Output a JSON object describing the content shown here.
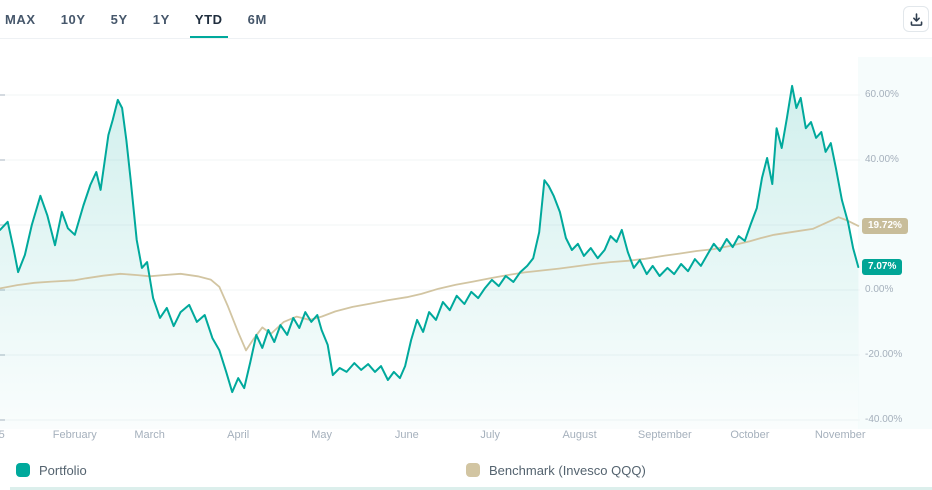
{
  "toolbar": {
    "tabs": [
      {
        "label": "MAX",
        "active": false
      },
      {
        "label": "10Y",
        "active": false
      },
      {
        "label": "5Y",
        "active": false
      },
      {
        "label": "1Y",
        "active": false
      },
      {
        "label": "YTD",
        "active": true
      },
      {
        "label": "6M",
        "active": false
      }
    ],
    "download_icon": "download-icon"
  },
  "colors": {
    "accent": "#00a99c",
    "benchmark": "#d2c5a2",
    "axis_text": "#a5b0bc",
    "active_tab_underline": "#00a99c"
  },
  "chart_data": {
    "type": "line",
    "subtype": "area",
    "title": "",
    "unit": "percent",
    "selected_range": "YTD",
    "ylim": [
      -45,
      68
    ],
    "grid": true,
    "legend_position": "bottom",
    "gridlines": [
      60,
      40,
      20,
      0,
      -20,
      -40
    ],
    "y_ticks": [
      {
        "value": 60,
        "label": "60.00%"
      },
      {
        "value": 40,
        "label": "40.00%"
      },
      {
        "value": 0,
        "label": "0.00%"
      },
      {
        "value": -20,
        "label": "-20.00%"
      },
      {
        "value": -40,
        "label": "-40.00%"
      }
    ],
    "x_labels": [
      {
        "label": "5",
        "x": 0.2
      },
      {
        "label": "February",
        "x": 8.7
      },
      {
        "label": "March",
        "x": 17.4
      },
      {
        "label": "April",
        "x": 27.7
      },
      {
        "label": "May",
        "x": 37.4
      },
      {
        "label": "June",
        "x": 47.3
      },
      {
        "label": "July",
        "x": 57.0
      },
      {
        "label": "August",
        "x": 67.4
      },
      {
        "label": "September",
        "x": 77.3
      },
      {
        "label": "October",
        "x": 87.2
      },
      {
        "label": "November",
        "x": 97.7
      }
    ],
    "series": [
      {
        "name": "Portfolio",
        "color": "#00a99c",
        "badge_color": "#00a596",
        "fill": true,
        "end_value": 7.07,
        "end_label": "7.07%",
        "points": [
          [
            0,
            18.5
          ],
          [
            0.9,
            21
          ],
          [
            1.6,
            12.3
          ],
          [
            2.1,
            5.5
          ],
          [
            2.9,
            10.8
          ],
          [
            3.7,
            20
          ],
          [
            4.7,
            29
          ],
          [
            5.5,
            23
          ],
          [
            6.4,
            13.8
          ],
          [
            7.2,
            24
          ],
          [
            7.9,
            19
          ],
          [
            8.7,
            17
          ],
          [
            9.7,
            26
          ],
          [
            10.5,
            32.3
          ],
          [
            11.2,
            36.3
          ],
          [
            11.7,
            30.8
          ],
          [
            12.6,
            47.7
          ],
          [
            13.1,
            52.3
          ],
          [
            13.7,
            58.5
          ],
          [
            14.2,
            56
          ],
          [
            14.7,
            46
          ],
          [
            15.2,
            33.8
          ],
          [
            15.9,
            15.4
          ],
          [
            16.5,
            6.8
          ],
          [
            17.1,
            8.6
          ],
          [
            17.8,
            -2.5
          ],
          [
            18.6,
            -8.6
          ],
          [
            19.4,
            -5.5
          ],
          [
            20.2,
            -11.1
          ],
          [
            21,
            -6.8
          ],
          [
            22,
            -4.6
          ],
          [
            22.9,
            -9.8
          ],
          [
            23.8,
            -7.7
          ],
          [
            24.7,
            -14.8
          ],
          [
            25.5,
            -18.5
          ],
          [
            26.3,
            -25.2
          ],
          [
            27,
            -31.4
          ],
          [
            27.7,
            -27.1
          ],
          [
            28.4,
            -30.2
          ],
          [
            29.1,
            -22.2
          ],
          [
            29.8,
            -13.8
          ],
          [
            30.5,
            -17.8
          ],
          [
            31.2,
            -12.3
          ],
          [
            31.9,
            -16
          ],
          [
            32.6,
            -10.8
          ],
          [
            33.4,
            -13.8
          ],
          [
            34.1,
            -8.6
          ],
          [
            34.8,
            -11.7
          ],
          [
            35.5,
            -6.8
          ],
          [
            36.2,
            -9.8
          ],
          [
            36.9,
            -7.7
          ],
          [
            37.4,
            -12.3
          ],
          [
            38.1,
            -16.9
          ],
          [
            38.7,
            -26.2
          ],
          [
            39.5,
            -24
          ],
          [
            40.3,
            -25.2
          ],
          [
            41.2,
            -22.5
          ],
          [
            42,
            -24.6
          ],
          [
            42.8,
            -22.8
          ],
          [
            43.6,
            -25.2
          ],
          [
            44.3,
            -23.4
          ],
          [
            45.1,
            -27.7
          ],
          [
            45.8,
            -25.2
          ],
          [
            46.5,
            -27.1
          ],
          [
            47.1,
            -23.4
          ],
          [
            47.8,
            -15.4
          ],
          [
            48.5,
            -9.2
          ],
          [
            49.2,
            -12.9
          ],
          [
            49.9,
            -6.8
          ],
          [
            50.7,
            -9.2
          ],
          [
            51.5,
            -3.7
          ],
          [
            52.3,
            -6.2
          ],
          [
            53.1,
            -1.8
          ],
          [
            54,
            -4.3
          ],
          [
            54.8,
            -0.6
          ],
          [
            55.6,
            -2.5
          ],
          [
            56.4,
            0.6
          ],
          [
            57.2,
            3.1
          ],
          [
            58,
            1.2
          ],
          [
            58.8,
            4.3
          ],
          [
            59.7,
            2.5
          ],
          [
            60.5,
            5.5
          ],
          [
            61.3,
            7.4
          ],
          [
            62,
            9.8
          ],
          [
            62.7,
            17.8
          ],
          [
            63.3,
            33.8
          ],
          [
            63.8,
            32
          ],
          [
            64.4,
            28.9
          ],
          [
            65.1,
            24
          ],
          [
            65.8,
            16
          ],
          [
            66.5,
            12.3
          ],
          [
            67.2,
            14.2
          ],
          [
            67.9,
            10.5
          ],
          [
            68.7,
            12.9
          ],
          [
            69.5,
            9.8
          ],
          [
            70.3,
            12.3
          ],
          [
            71,
            16.6
          ],
          [
            71.7,
            14.8
          ],
          [
            72.3,
            18.5
          ],
          [
            73,
            11.7
          ],
          [
            73.7,
            6.8
          ],
          [
            74.4,
            9.2
          ],
          [
            75.2,
            4.9
          ],
          [
            75.9,
            7.4
          ],
          [
            76.7,
            4.3
          ],
          [
            77.6,
            6.8
          ],
          [
            78.4,
            4.9
          ],
          [
            79.2,
            8
          ],
          [
            80,
            5.8
          ],
          [
            80.8,
            9.5
          ],
          [
            81.5,
            7.4
          ],
          [
            82.3,
            11.1
          ],
          [
            83,
            14.2
          ],
          [
            83.7,
            12
          ],
          [
            84.5,
            15.7
          ],
          [
            85.2,
            13.2
          ],
          [
            85.9,
            16.6
          ],
          [
            86.6,
            15.1
          ],
          [
            87.3,
            20.3
          ],
          [
            88,
            25.2
          ],
          [
            88.6,
            34.5
          ],
          [
            89.2,
            40.6
          ],
          [
            89.8,
            32.6
          ],
          [
            90.3,
            49.8
          ],
          [
            90.9,
            43.7
          ],
          [
            91.5,
            52.9
          ],
          [
            92.1,
            62.8
          ],
          [
            92.6,
            56
          ],
          [
            93.1,
            59.1
          ],
          [
            93.7,
            49.8
          ],
          [
            94.3,
            51.7
          ],
          [
            94.9,
            46.8
          ],
          [
            95.5,
            48.6
          ],
          [
            96,
            42.5
          ],
          [
            96.6,
            45.2
          ],
          [
            97.2,
            37.5
          ],
          [
            97.9,
            27.7
          ],
          [
            98.6,
            20.9
          ],
          [
            99.2,
            12.9
          ],
          [
            99.8,
            7.07
          ]
        ]
      },
      {
        "name": "Benchmark (Invesco QQQ)",
        "color": "#d2c5a2",
        "badge_color": "#c8bd9a",
        "fill": false,
        "end_value": 19.72,
        "end_label": "19.72%",
        "points": [
          [
            0,
            0.5
          ],
          [
            2,
            1.5
          ],
          [
            4,
            2.2
          ],
          [
            6,
            2.6
          ],
          [
            8.7,
            3
          ],
          [
            10,
            3.6
          ],
          [
            12,
            4.4
          ],
          [
            14,
            5
          ],
          [
            16,
            4.6
          ],
          [
            17.4,
            4.2
          ],
          [
            19,
            4.6
          ],
          [
            21,
            5
          ],
          [
            23,
            4.2
          ],
          [
            24.5,
            3.2
          ],
          [
            25.5,
            1
          ],
          [
            26.5,
            -5
          ],
          [
            27.7,
            -13
          ],
          [
            28.6,
            -18.6
          ],
          [
            29.5,
            -15
          ],
          [
            30.5,
            -11.5
          ],
          [
            31.5,
            -13.5
          ],
          [
            33,
            -9.8
          ],
          [
            34.5,
            -8.2
          ],
          [
            36,
            -9.2
          ],
          [
            37.4,
            -8.2
          ],
          [
            39,
            -6.6
          ],
          [
            41,
            -5.2
          ],
          [
            43,
            -4.2
          ],
          [
            45,
            -3.2
          ],
          [
            47.3,
            -2.2
          ],
          [
            49,
            -1.2
          ],
          [
            51,
            0.4
          ],
          [
            53,
            1.6
          ],
          [
            55,
            2.6
          ],
          [
            57,
            3.6
          ],
          [
            59,
            4.6
          ],
          [
            61,
            5.4
          ],
          [
            63,
            6
          ],
          [
            65,
            6.6
          ],
          [
            67.4,
            7.4
          ],
          [
            69,
            8
          ],
          [
            71,
            8.6
          ],
          [
            73,
            9
          ],
          [
            75,
            9.6
          ],
          [
            77.3,
            10.6
          ],
          [
            79,
            11.2
          ],
          [
            81,
            12
          ],
          [
            83,
            12.6
          ],
          [
            85,
            13.6
          ],
          [
            87.2,
            15
          ],
          [
            88.5,
            16
          ],
          [
            90,
            17
          ],
          [
            91.5,
            17.6
          ],
          [
            93,
            18.2
          ],
          [
            94.5,
            18.8
          ],
          [
            96,
            20.6
          ],
          [
            97.5,
            22.4
          ],
          [
            98.5,
            21.4
          ],
          [
            99.8,
            19.72
          ]
        ]
      }
    ]
  }
}
